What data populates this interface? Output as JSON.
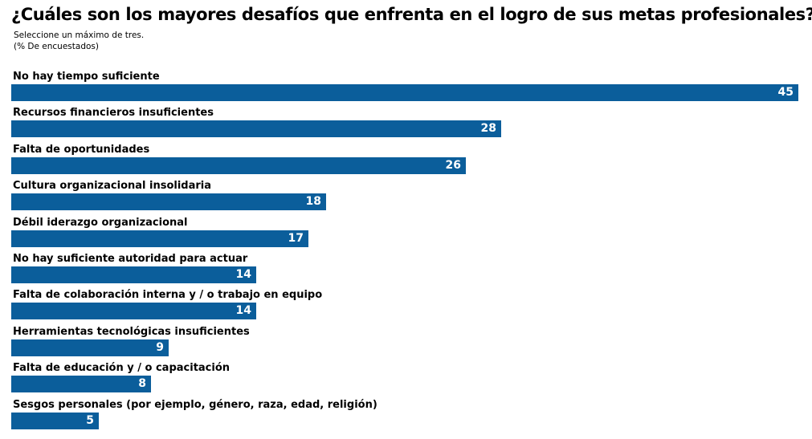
{
  "chart_data": {
    "type": "bar",
    "orientation": "horizontal",
    "title": "¿Cuáles son los mayores desafíos que enfrenta en el logro de sus metas profesionales?",
    "subtitle": [
      "Seleccione un máximo de tres.",
      "(% De encuestados)"
    ],
    "categories": [
      "No hay tiempo suficiente",
      "Recursos financieros insuficientes",
      "Falta de oportunidades",
      "Cultura organizacional insolidaria",
      "Débil iderazgo organizacional",
      "No hay suficiente autoridad para actuar",
      "Falta de colaboración interna y / o trabajo en equipo",
      "Herramientas tecnológicas insuficientes",
      "Falta de educación y / o capacitación",
      "Sesgos personales (por ejemplo, género, raza, edad, religión)"
    ],
    "values": [
      45,
      28,
      26,
      18,
      17,
      14,
      14,
      9,
      8,
      5
    ],
    "xlim": [
      0,
      45
    ],
    "grid": false,
    "legend": "none",
    "colors": {
      "bar": "#0b5e9b",
      "value_label": "#ffffff"
    }
  }
}
